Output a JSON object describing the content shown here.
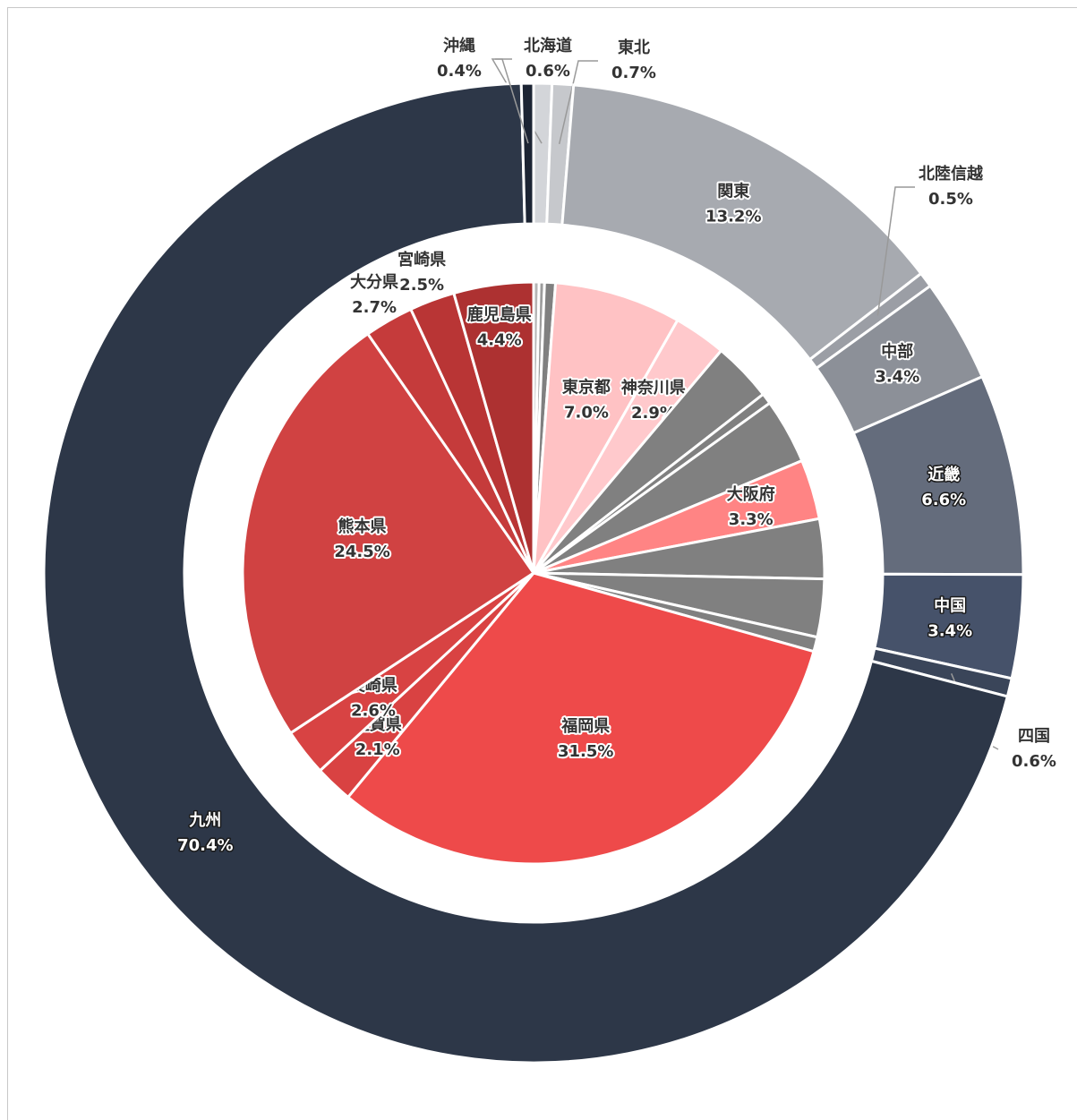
{
  "chart_data": [
    {
      "type": "donut",
      "categories": [
        "北海道",
        "東北",
        "関東",
        "北陸信越",
        "中部",
        "近畿",
        "中国",
        "四国",
        "九州",
        "沖縄"
      ],
      "values": [
        0.6,
        0.7,
        13.2,
        0.5,
        3.4,
        6.6,
        3.4,
        0.6,
        70.4,
        0.4
      ],
      "value_labels": [
        "0.6%",
        "0.7%",
        "13.2%",
        "0.5%",
        "3.4%",
        "6.6%",
        "3.4%",
        "0.6%",
        "70.4%",
        "0.4%"
      ],
      "colors": [
        "#d3d5d9",
        "#c6c8cc",
        "#a7aab0",
        "#9b9ea5",
        "#8c9098",
        "#646c7c",
        "#46526a",
        "#3a4559",
        "#2d3748",
        "#1c2433"
      ]
    },
    {
      "type": "pie",
      "categories": [
        null,
        null,
        null,
        "東京都",
        "神奈川県",
        null,
        null,
        null,
        "大阪府",
        null,
        null,
        null,
        "福岡県",
        "佐賀県",
        "長崎県",
        "熊本県",
        "大分県",
        "宮崎県",
        "鹿児島県"
      ],
      "values": [
        0.3,
        0.3,
        0.6,
        7.0,
        2.9,
        3.3,
        0.6,
        3.6,
        3.3,
        3.3,
        3.2,
        0.8,
        31.5,
        2.1,
        2.6,
        24.5,
        2.7,
        2.5,
        4.4
      ],
      "value_labels": [
        null,
        null,
        null,
        "7.0%",
        "2.9%",
        null,
        null,
        null,
        "3.3%",
        null,
        null,
        null,
        "31.5%",
        "2.1%",
        "2.6%",
        "24.5%",
        "2.7%",
        "2.5%",
        "4.4%"
      ],
      "colors": [
        "#b5b5b5",
        "#9c9c9c",
        "#808080",
        "#ffc2c4",
        "#ffc9cc",
        "#808080",
        "#808080",
        "#808080",
        "#ff8484",
        "#808080",
        "#808080",
        "#808080",
        "#ee4a4a",
        "#d94242",
        "#d84343",
        "#d04242",
        "#c53b3b",
        "#b93535",
        "#ad3131"
      ]
    }
  ]
}
